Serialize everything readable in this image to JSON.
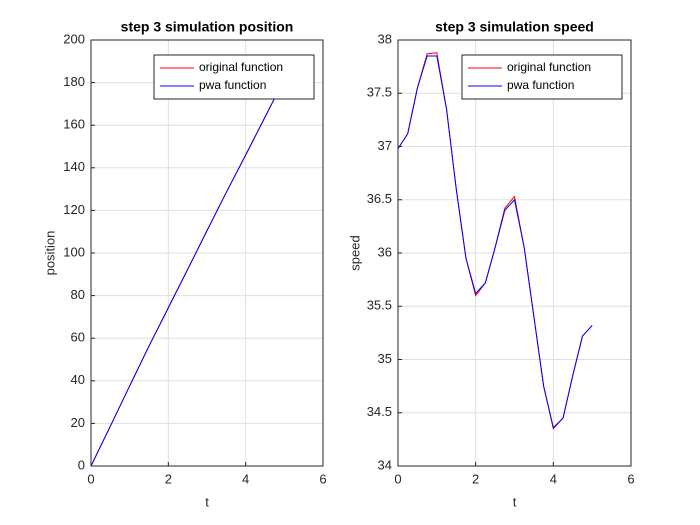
{
  "chart_data": [
    {
      "type": "line",
      "title": "step 3 simulation position",
      "xlabel": "t",
      "ylabel": "position",
      "x": [
        0,
        0.5,
        1,
        1.5,
        2,
        2.5,
        3,
        3.5,
        4,
        4.5,
        5
      ],
      "series": [
        {
          "name": "original function",
          "color": "#ff0000",
          "values": [
            0,
            18.7,
            37.6,
            56.3,
            74.3,
            92.3,
            110.5,
            128.5,
            146.0,
            163.8,
            181.6
          ]
        },
        {
          "name": "pwa function",
          "color": "#0000ff",
          "values": [
            0,
            18.7,
            37.6,
            56.3,
            74.3,
            92.3,
            110.5,
            128.5,
            146.0,
            163.8,
            181.6
          ]
        }
      ],
      "xlim": [
        0,
        6
      ],
      "xticks": [
        0,
        2,
        4,
        6
      ],
      "ylim": [
        0,
        200
      ],
      "yticks": [
        0,
        20,
        40,
        60,
        80,
        100,
        120,
        140,
        160,
        180,
        200
      ],
      "grid": true,
      "legend": "upper right"
    },
    {
      "type": "line",
      "title": "step 3 simulation speed",
      "xlabel": "t",
      "ylabel": "speed",
      "x": [
        0,
        0.25,
        0.5,
        0.75,
        1,
        1.25,
        1.5,
        1.75,
        2,
        2.25,
        2.5,
        2.75,
        3,
        3.25,
        3.5,
        3.75,
        4,
        4.25,
        4.5,
        4.75,
        5
      ],
      "series": [
        {
          "name": "original function",
          "color": "#ff0000",
          "values": [
            36.98,
            37.12,
            37.55,
            37.87,
            37.88,
            37.35,
            36.6,
            35.95,
            35.6,
            35.72,
            36.05,
            36.42,
            36.53,
            36.05,
            35.4,
            34.75,
            34.35,
            34.45,
            34.85,
            35.22,
            35.32
          ]
        },
        {
          "name": "pwa function",
          "color": "#0000ff",
          "values": [
            36.98,
            37.12,
            37.55,
            37.85,
            37.85,
            37.35,
            36.6,
            35.95,
            35.62,
            35.72,
            36.05,
            36.4,
            36.5,
            36.05,
            35.4,
            34.75,
            34.36,
            34.45,
            34.85,
            35.22,
            35.32
          ]
        }
      ],
      "xlim": [
        0,
        6
      ],
      "xticks": [
        0,
        2,
        4,
        6
      ],
      "ylim": [
        34,
        38
      ],
      "yticks": [
        34,
        34.5,
        35,
        35.5,
        36,
        36.5,
        37,
        37.5,
        38
      ],
      "grid": true,
      "legend": "upper right"
    }
  ]
}
